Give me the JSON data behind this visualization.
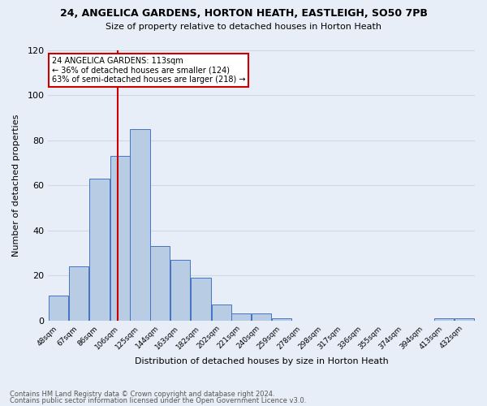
{
  "title1": "24, ANGELICA GARDENS, HORTON HEATH, EASTLEIGH, SO50 7PB",
  "title2": "Size of property relative to detached houses in Horton Heath",
  "xlabel": "Distribution of detached houses by size in Horton Heath",
  "ylabel": "Number of detached properties",
  "footnote1": "Contains HM Land Registry data © Crown copyright and database right 2024.",
  "footnote2": "Contains public sector information licensed under the Open Government Licence v3.0.",
  "bin_labels": [
    "48sqm",
    "67sqm",
    "86sqm",
    "106sqm",
    "125sqm",
    "144sqm",
    "163sqm",
    "182sqm",
    "202sqm",
    "221sqm",
    "240sqm",
    "259sqm",
    "278sqm",
    "298sqm",
    "317sqm",
    "336sqm",
    "355sqm",
    "374sqm",
    "394sqm",
    "413sqm",
    "432sqm"
  ],
  "bar_heights": [
    11,
    24,
    63,
    73,
    85,
    33,
    27,
    19,
    7,
    3,
    3,
    1,
    0,
    0,
    0,
    0,
    0,
    0,
    0,
    1,
    1
  ],
  "bar_color": "#b8cce4",
  "bar_edge_color": "#4472c4",
  "vline_color": "#cc0000",
  "annotation_line1": "24 ANGELICA GARDENS: 113sqm",
  "annotation_line2": "← 36% of detached houses are smaller (124)",
  "annotation_line3": "63% of semi-detached houses are larger (218) →",
  "annotation_box_color": "#ffffff",
  "annotation_box_edge": "#cc0000",
  "ylim": [
    0,
    120
  ],
  "yticks": [
    0,
    20,
    40,
    60,
    80,
    100,
    120
  ],
  "grid_color": "#d0d8e8",
  "bg_color": "#e8eef8",
  "property_sqm": 113,
  "bin_starts": [
    48,
    67,
    86,
    106,
    125,
    144,
    163,
    182,
    202,
    221,
    240,
    259,
    278,
    298,
    317,
    336,
    355,
    374,
    394,
    413,
    432
  ]
}
